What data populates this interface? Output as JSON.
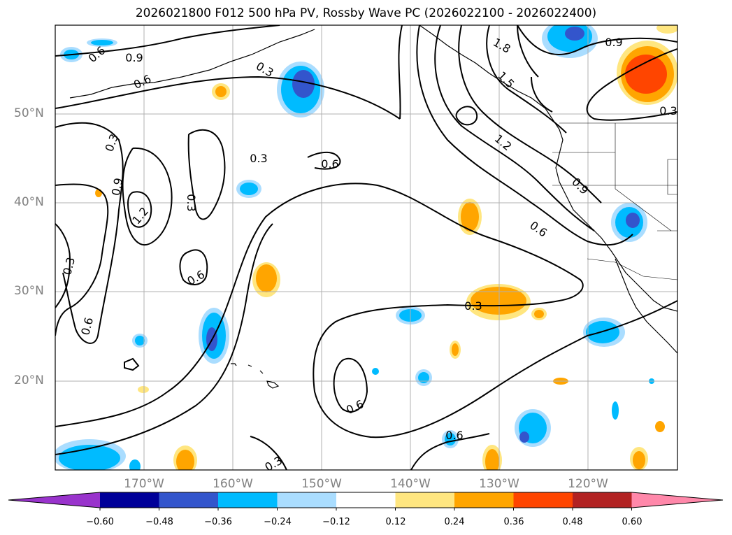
{
  "title": "2026021800 F012 500 hPa PV, Rossby Wave PC (2026022100 - 2026022400)",
  "map": {
    "lat_labels": [
      "50°N",
      "40°N",
      "30°N",
      "20°N"
    ],
    "lon_labels": [
      "170°W",
      "160°W",
      "150°W",
      "140°W",
      "130°W",
      "120°W"
    ],
    "grid": true,
    "contour_labels": [
      "0.6",
      "0.9",
      "0.6",
      "0.3",
      "0.3",
      "0.9",
      "1.2",
      "0.3",
      "0.3",
      "0.6",
      "0.6",
      "0.6",
      "0.3",
      "0.6",
      "1.8",
      "1.5",
      "1.2",
      "0.9",
      "0.6",
      "0.9",
      "0.3",
      "0.3",
      "0.6",
      "0.3",
      "0.3"
    ]
  },
  "colorbar": {
    "ticks": [
      "−0.60",
      "−0.48",
      "−0.36",
      "−0.24",
      "−0.12",
      "0.12",
      "0.24",
      "0.36",
      "0.48",
      "0.60"
    ],
    "colors": [
      "#9933cc",
      "#000099",
      "#3355cc",
      "#00bbff",
      "#aaddff",
      "#ffffff",
      "#ffe680",
      "#ffa500",
      "#ff4500",
      "#b22222",
      "#ff88aa"
    ]
  }
}
